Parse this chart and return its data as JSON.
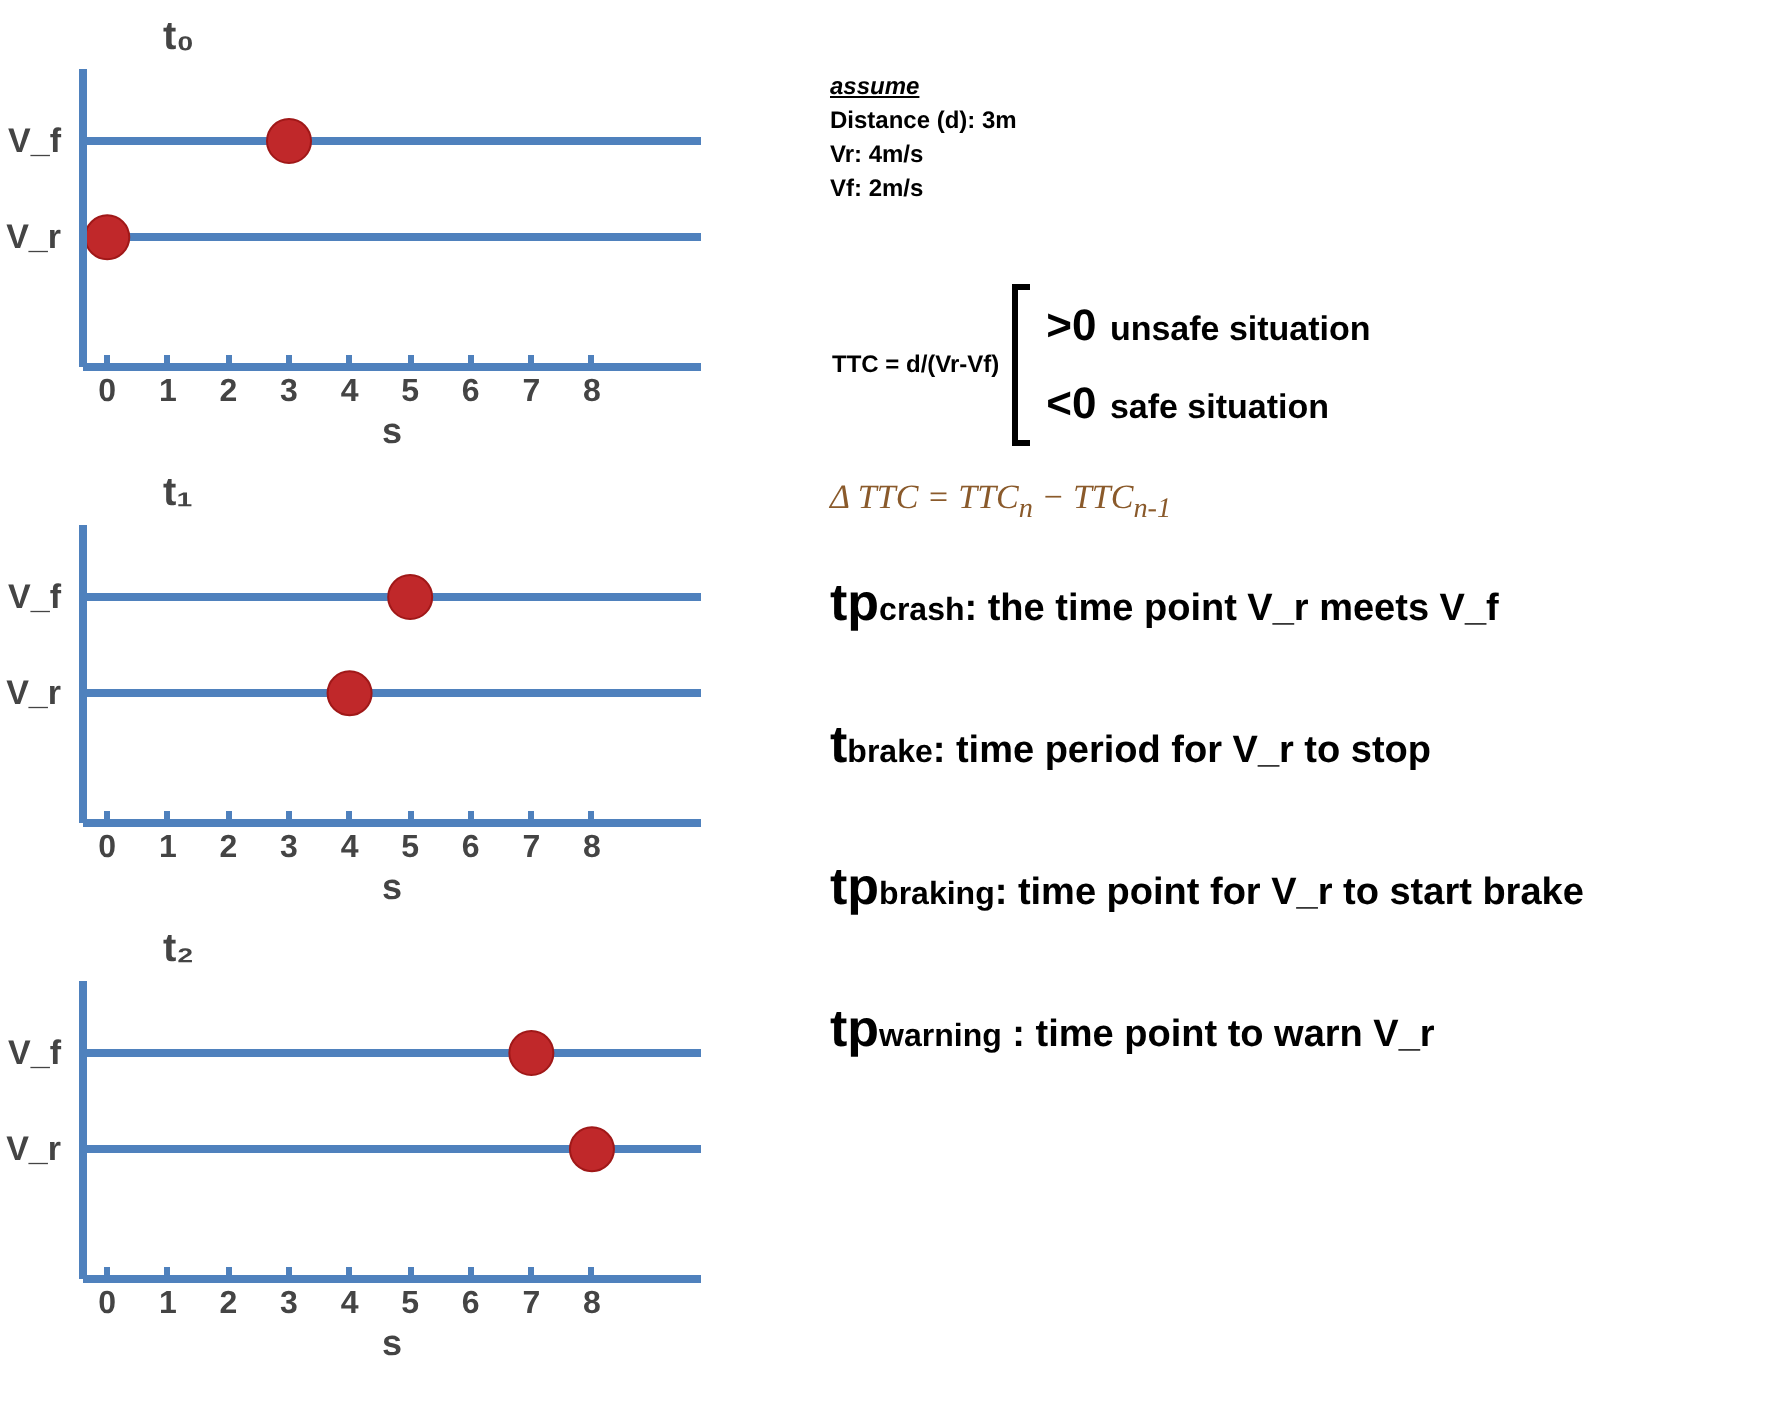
{
  "chart_data": [
    {
      "type": "scatter",
      "title": "t₀",
      "xlabel": "s",
      "orientation": "horizontal",
      "categories": [
        "V_f",
        "V_r"
      ],
      "values": [
        3,
        0
      ],
      "color": "#c0282a",
      "marker": "circle",
      "grid": "y",
      "xlim": [
        -0.4,
        9.8
      ],
      "xticks": [
        0,
        1,
        2,
        3,
        4,
        5,
        6,
        7,
        8
      ]
    },
    {
      "type": "scatter",
      "title": "t₁",
      "xlabel": "s",
      "orientation": "horizontal",
      "categories": [
        "V_f",
        "V_r"
      ],
      "values": [
        5,
        4
      ],
      "color": "#c0282a",
      "marker": "circle",
      "grid": "y",
      "xlim": [
        -0.4,
        9.8
      ],
      "xticks": [
        0,
        1,
        2,
        3,
        4,
        5,
        6,
        7,
        8
      ]
    },
    {
      "type": "scatter",
      "title": "t₂",
      "xlabel": "s",
      "orientation": "horizontal",
      "categories": [
        "V_f",
        "V_r"
      ],
      "values": [
        7,
        8
      ],
      "color": "#c0282a",
      "marker": "circle",
      "grid": "y",
      "xlim": [
        -0.4,
        9.8
      ],
      "xticks": [
        0,
        1,
        2,
        3,
        4,
        5,
        6,
        7,
        8
      ]
    },
    {
      "type": "other",
      "annotations": [
        "assume",
        "Distance (d): 3m",
        "Vr: 4m/s",
        "Vf: 2m/s",
        "TTC = d/(Vr-Vf)",
        ">0",
        "unsafe situation",
        "<0",
        "safe situation",
        "Δ TTC = TTC$_{n}$ − TTC$_{n-1}$",
        "tp$_{crash}$: the time point V_r meets V_f",
        "t$_{brake}$: time period for V_r to stop",
        "tp$_{braking}$: time point for V_r to start brake",
        "tp$_{warning}$ : time point to warn V_r"
      ]
    }
  ]
}
